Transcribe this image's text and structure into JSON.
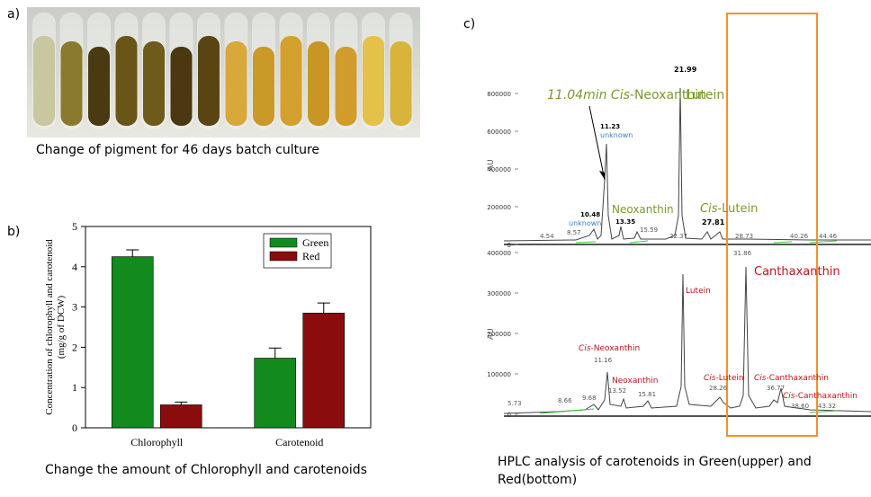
{
  "panel_a": {
    "label": "a)",
    "caption": "Change of pigment for 46 days batch culture"
  },
  "panel_b": {
    "label": "b)",
    "caption": "Change the amount of Chlorophyll and carotenoids"
  },
  "chart_data": {
    "type": "bar",
    "categories": [
      "Chlorophyll",
      "Carotenoid"
    ],
    "series": [
      {
        "name": "Green",
        "color": "#138a1d",
        "values": [
          4.25,
          1.73
        ],
        "errors": [
          0.17,
          0.25
        ]
      },
      {
        "name": "Red",
        "color": "#8a0c0c",
        "values": [
          0.57,
          2.85
        ],
        "errors": [
          0.07,
          0.25
        ]
      }
    ],
    "ylabel": [
      "Concentration of chlorophyll and carotenoid",
      "(mg/g of DCW)"
    ],
    "ylim": [
      0,
      5
    ],
    "yticks": [
      0,
      1,
      2,
      3,
      4,
      5
    ],
    "legend": "top-right"
  },
  "panel_c": {
    "label": "c)",
    "caption": [
      "HPLC analysis of carotenoids in Green(upper) and",
      "Red(bottom)"
    ],
    "axis_label": "AU",
    "upper_yticks": [
      0,
      200000,
      400000,
      600000,
      800000
    ],
    "lower_yticks": [
      0,
      100000,
      200000,
      300000,
      400000
    ],
    "annotations": [
      [
        "4.54"
      ],
      [
        "8.57"
      ],
      [
        "10.48"
      ],
      [
        "unknown"
      ],
      [
        "11.23"
      ],
      [
        "unknown"
      ],
      [
        "11.04min Cis",
        "-Neoxanthin"
      ],
      [
        "Neoxanthin"
      ],
      [
        "13.35"
      ],
      [
        "15.59"
      ],
      [
        "21.99"
      ],
      [
        "Lutein"
      ],
      [
        "22.37"
      ],
      [
        "27.81"
      ],
      [
        "Cis",
        "-Lutein"
      ],
      [
        "28.73"
      ],
      [
        "31.86"
      ],
      [
        "40.26"
      ],
      [
        "44.46"
      ],
      [
        "Canthaxanthin"
      ],
      [
        "Lutein"
      ],
      [
        "Cis",
        "-Neoxanthin"
      ],
      [
        "11.16"
      ],
      [
        "Neoxanthin"
      ],
      [
        "13.52"
      ],
      [
        "15.81"
      ],
      [
        "9.68"
      ],
      [
        "8.66"
      ],
      [
        "5.73"
      ],
      [
        "Cis",
        "-Lutein"
      ],
      [
        "28.26"
      ],
      [
        "Cis",
        "-Canthaxanthin"
      ],
      [
        "36.77"
      ],
      [
        "Cis",
        "-Canthaxanthin"
      ],
      [
        "38.60"
      ],
      [
        "43.32"
      ]
    ]
  }
}
